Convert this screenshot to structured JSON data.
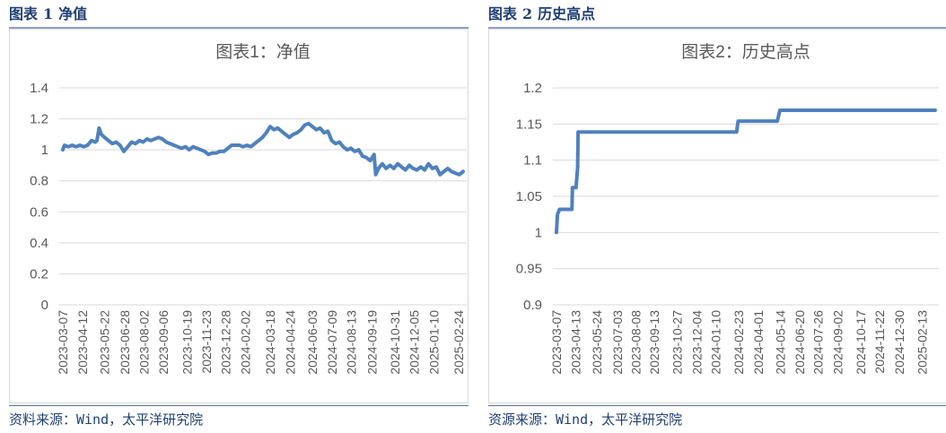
{
  "left": {
    "heading": {
      "prefix": "图表",
      "num": "1",
      "title": "净值"
    },
    "source": "资料来源：Wind，太平洋研究院"
  },
  "right": {
    "heading": {
      "prefix": "图表",
      "num": "2",
      "title": "历史高点"
    },
    "source": "资源来源：Wind，太平洋研究院"
  },
  "colors": {
    "line": "#4f81bd",
    "grid": "#d9d9d9",
    "heading": "#1f3f73"
  },
  "chart_data": [
    {
      "type": "line",
      "title": "图表1：净值",
      "xlabel": "",
      "ylabel": "",
      "ylim": [
        0,
        1.4
      ],
      "yticks": [
        "0",
        "0.2",
        "0.4",
        "0.6",
        "0.8",
        "1",
        "1.2",
        "1.4"
      ],
      "grid": true,
      "xticks": [
        "2023-03-07",
        "2023-04-12",
        "2023-05-22",
        "2023-06-28",
        "2023-08-02",
        "2023-09-06",
        "2023-10-19",
        "2023-11-23",
        "2023-12-28",
        "2024-02-02",
        "2024-03-18",
        "2024-04-24",
        "2024-06-03",
        "2024-07-09",
        "2024-08-13",
        "2024-09-19",
        "2024-10-31",
        "2024-12-05",
        "2025-01-10",
        "2025-02-24"
      ],
      "series": [
        {
          "values": [
            [
              "2023-03-07",
              1.0
            ],
            [
              "2023-03-10",
              1.03
            ],
            [
              "2023-03-17",
              1.02
            ],
            [
              "2023-03-24",
              1.03
            ],
            [
              "2023-03-31",
              1.02
            ],
            [
              "2023-04-07",
              1.03
            ],
            [
              "2023-04-14",
              1.02
            ],
            [
              "2023-04-21",
              1.03
            ],
            [
              "2023-04-28",
              1.06
            ],
            [
              "2023-05-05",
              1.05
            ],
            [
              "2023-05-08",
              1.06
            ],
            [
              "2023-05-12",
              1.14
            ],
            [
              "2023-05-16",
              1.1
            ],
            [
              "2023-05-22",
              1.08
            ],
            [
              "2023-05-29",
              1.06
            ],
            [
              "2023-06-05",
              1.04
            ],
            [
              "2023-06-12",
              1.05
            ],
            [
              "2023-06-19",
              1.03
            ],
            [
              "2023-06-26",
              0.99
            ],
            [
              "2023-07-03",
              1.02
            ],
            [
              "2023-07-10",
              1.05
            ],
            [
              "2023-07-17",
              1.04
            ],
            [
              "2023-07-24",
              1.06
            ],
            [
              "2023-07-31",
              1.05
            ],
            [
              "2023-08-07",
              1.07
            ],
            [
              "2023-08-14",
              1.06
            ],
            [
              "2023-08-21",
              1.07
            ],
            [
              "2023-08-28",
              1.08
            ],
            [
              "2023-09-04",
              1.07
            ],
            [
              "2023-09-11",
              1.05
            ],
            [
              "2023-09-18",
              1.04
            ],
            [
              "2023-09-25",
              1.03
            ],
            [
              "2023-10-02",
              1.02
            ],
            [
              "2023-10-09",
              1.01
            ],
            [
              "2023-10-16",
              1.02
            ],
            [
              "2023-10-23",
              1.0
            ],
            [
              "2023-10-30",
              1.02
            ],
            [
              "2023-11-06",
              1.01
            ],
            [
              "2023-11-13",
              1.0
            ],
            [
              "2023-11-20",
              0.99
            ],
            [
              "2023-11-27",
              0.97
            ],
            [
              "2023-12-04",
              0.98
            ],
            [
              "2023-12-11",
              0.98
            ],
            [
              "2023-12-18",
              0.99
            ],
            [
              "2023-12-25",
              0.99
            ],
            [
              "2024-01-01",
              1.01
            ],
            [
              "2024-01-08",
              1.03
            ],
            [
              "2024-01-15",
              1.03
            ],
            [
              "2024-01-22",
              1.03
            ],
            [
              "2024-01-29",
              1.02
            ],
            [
              "2024-02-05",
              1.03
            ],
            [
              "2024-02-12",
              1.02
            ],
            [
              "2024-02-19",
              1.04
            ],
            [
              "2024-02-26",
              1.06
            ],
            [
              "2024-03-04",
              1.08
            ],
            [
              "2024-03-11",
              1.11
            ],
            [
              "2024-03-18",
              1.15
            ],
            [
              "2024-03-25",
              1.13
            ],
            [
              "2024-04-01",
              1.14
            ],
            [
              "2024-04-08",
              1.12
            ],
            [
              "2024-04-15",
              1.1
            ],
            [
              "2024-04-22",
              1.08
            ],
            [
              "2024-04-29",
              1.1
            ],
            [
              "2024-05-06",
              1.11
            ],
            [
              "2024-05-13",
              1.13
            ],
            [
              "2024-05-20",
              1.16
            ],
            [
              "2024-05-27",
              1.17
            ],
            [
              "2024-06-03",
              1.15
            ],
            [
              "2024-06-10",
              1.13
            ],
            [
              "2024-06-17",
              1.14
            ],
            [
              "2024-06-24",
              1.11
            ],
            [
              "2024-07-01",
              1.12
            ],
            [
              "2024-07-08",
              1.06
            ],
            [
              "2024-07-15",
              1.04
            ],
            [
              "2024-07-22",
              1.05
            ],
            [
              "2024-07-29",
              1.02
            ],
            [
              "2024-08-05",
              1.0
            ],
            [
              "2024-08-12",
              1.01
            ],
            [
              "2024-08-19",
              0.99
            ],
            [
              "2024-08-26",
              1.0
            ],
            [
              "2024-09-02",
              0.96
            ],
            [
              "2024-09-09",
              0.95
            ],
            [
              "2024-09-16",
              0.93
            ],
            [
              "2024-09-23",
              0.97
            ],
            [
              "2024-09-26",
              0.84
            ],
            [
              "2024-10-01",
              0.88
            ],
            [
              "2024-10-08",
              0.91
            ],
            [
              "2024-10-15",
              0.88
            ],
            [
              "2024-10-22",
              0.9
            ],
            [
              "2024-10-29",
              0.88
            ],
            [
              "2024-11-05",
              0.91
            ],
            [
              "2024-11-12",
              0.89
            ],
            [
              "2024-11-19",
              0.87
            ],
            [
              "2024-11-26",
              0.9
            ],
            [
              "2024-12-03",
              0.88
            ],
            [
              "2024-12-10",
              0.87
            ],
            [
              "2024-12-17",
              0.89
            ],
            [
              "2024-12-24",
              0.87
            ],
            [
              "2024-12-31",
              0.91
            ],
            [
              "2025-01-07",
              0.88
            ],
            [
              "2025-01-14",
              0.89
            ],
            [
              "2025-01-21",
              0.84
            ],
            [
              "2025-01-28",
              0.86
            ],
            [
              "2025-02-04",
              0.88
            ],
            [
              "2025-02-11",
              0.86
            ],
            [
              "2025-02-18",
              0.85
            ],
            [
              "2025-02-25",
              0.84
            ],
            [
              "2025-03-04",
              0.86
            ]
          ]
        }
      ]
    },
    {
      "type": "line",
      "title": "图表2：历史高点",
      "xlabel": "",
      "ylabel": "",
      "ylim": [
        0.9,
        1.2
      ],
      "yticks": [
        "0.9",
        "0.95",
        "1",
        "1.05",
        "1.1",
        "1.15",
        "1.2"
      ],
      "grid": true,
      "xticks": [
        "2023-03-07",
        "2023-04-13",
        "2023-05-24",
        "2023-07-03",
        "2023-08-08",
        "2023-09-13",
        "2023-10-27",
        "2023-12-04",
        "2024-01-10",
        "2024-02-23",
        "2024-04-01",
        "2024-05-14",
        "2024-06-20",
        "2024-07-26",
        "2024-09-02",
        "2024-10-17",
        "2024-11-22",
        "2024-12-30",
        "2025-02-13"
      ],
      "series": [
        {
          "values": [
            [
              "2023-03-07",
              1.0
            ],
            [
              "2023-03-09",
              1.025
            ],
            [
              "2023-03-13",
              1.032
            ],
            [
              "2023-04-06",
              1.032
            ],
            [
              "2023-04-07",
              1.062
            ],
            [
              "2023-04-14",
              1.062
            ],
            [
              "2023-04-17",
              1.09
            ],
            [
              "2023-04-18",
              1.139
            ],
            [
              "2024-02-19",
              1.139
            ],
            [
              "2024-02-22",
              1.154
            ],
            [
              "2024-05-08",
              1.154
            ],
            [
              "2024-05-13",
              1.169
            ],
            [
              "2025-03-10",
              1.169
            ]
          ]
        }
      ]
    }
  ]
}
